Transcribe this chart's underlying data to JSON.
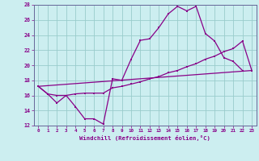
{
  "xlabel": "Windchill (Refroidissement éolien,°C)",
  "bg_color": "#cceef0",
  "line_color": "#880088",
  "grid_color": "#99cccc",
  "xlim": [
    -0.5,
    23.5
  ],
  "ylim": [
    12,
    28
  ],
  "xticks": [
    0,
    1,
    2,
    3,
    4,
    5,
    6,
    7,
    8,
    9,
    10,
    11,
    12,
    13,
    14,
    15,
    16,
    17,
    18,
    19,
    20,
    21,
    22,
    23
  ],
  "yticks": [
    12,
    14,
    16,
    18,
    20,
    22,
    24,
    26,
    28
  ],
  "curve1_x": [
    0,
    1,
    2,
    3,
    4,
    5,
    6,
    7,
    8,
    9,
    10,
    11,
    12,
    13,
    14,
    15,
    16,
    17,
    18,
    19,
    20,
    21,
    22
  ],
  "curve1_y": [
    17.2,
    16.2,
    15.0,
    16.0,
    14.5,
    12.9,
    12.9,
    12.2,
    18.2,
    18.0,
    20.8,
    23.3,
    23.5,
    25.0,
    26.8,
    27.8,
    27.2,
    27.8,
    24.2,
    23.2,
    21.0,
    20.5,
    19.3
  ],
  "curve2_x": [
    0,
    1,
    2,
    3,
    4,
    5,
    6,
    7,
    8,
    9,
    10,
    11,
    12,
    13,
    14,
    15,
    16,
    17,
    18,
    19,
    20,
    21,
    22,
    23
  ],
  "curve2_y": [
    17.2,
    16.2,
    16.0,
    16.0,
    16.2,
    16.3,
    16.3,
    16.3,
    17.0,
    17.2,
    17.5,
    17.8,
    18.2,
    18.5,
    19.0,
    19.3,
    19.8,
    20.2,
    20.8,
    21.2,
    21.8,
    22.2,
    23.2,
    19.3
  ],
  "curve3_x": [
    0,
    23
  ],
  "curve3_y": [
    17.2,
    19.3
  ]
}
